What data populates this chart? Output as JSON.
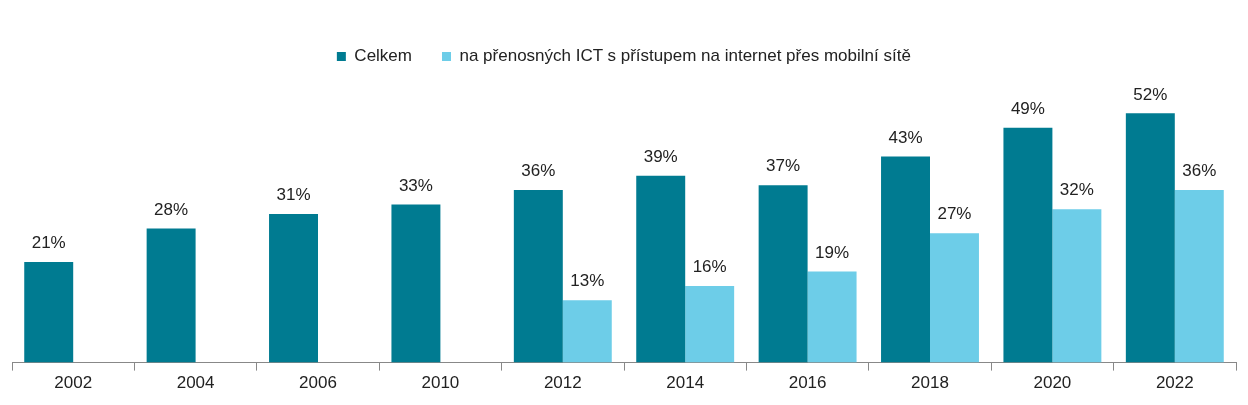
{
  "chart_data": {
    "type": "bar",
    "categories": [
      "2002",
      "2004",
      "2006",
      "2010",
      "2012",
      "2014",
      "2016",
      "2018",
      "2020",
      "2022"
    ],
    "series": [
      {
        "name": "Celkem",
        "color": "#007b91",
        "values": [
          21,
          28,
          31,
          33,
          36,
          39,
          37,
          43,
          49,
          52
        ],
        "value_labels": [
          "21%",
          "28%",
          "31%",
          "33%",
          "36%",
          "39%",
          "37%",
          "43%",
          "49%",
          "52%"
        ]
      },
      {
        "name": "na přenosných ICT s přístupem na internet přes mobilní sítě",
        "color": "#6dcde8",
        "values": [
          null,
          null,
          null,
          null,
          13,
          16,
          19,
          27,
          32,
          36
        ],
        "value_labels": [
          null,
          null,
          null,
          null,
          "13%",
          "16%",
          "19%",
          "27%",
          "32%",
          "36%"
        ]
      }
    ],
    "legend": "top"
  }
}
